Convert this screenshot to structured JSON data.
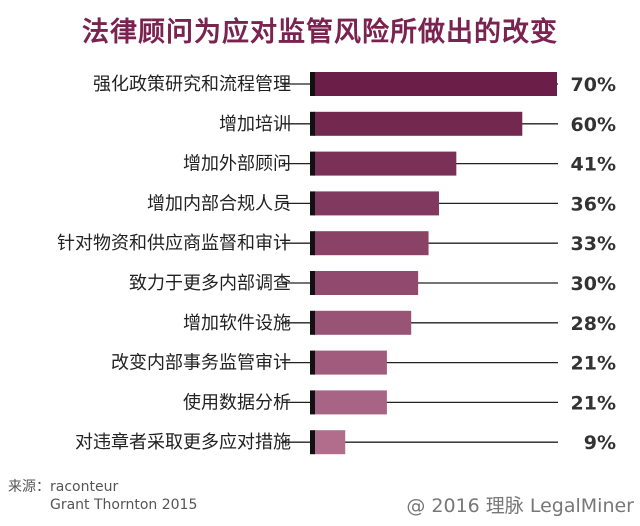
{
  "chart_data": {
    "type": "bar",
    "orientation": "horizontal",
    "title": "法律顾问为应对监管风险所做出的改变",
    "categories": [
      "强化政策研究和流程管理",
      "增加培训",
      "增加外部顾问",
      "增加内部合规人员",
      "针对物资和供应商监督和审计",
      "致力于更多内部调查",
      "增加软件设施",
      "改变内部事务监管审计",
      "使用数据分析",
      "对违章者采取更多应对措施"
    ],
    "values": [
      70,
      60,
      41,
      36,
      33,
      30,
      28,
      21,
      21,
      9
    ],
    "value_labels": [
      "70%",
      "60%",
      "41%",
      "36%",
      "33%",
      "30%",
      "28%",
      "21%",
      "21%",
      "9%"
    ],
    "xlim": [
      0,
      70
    ],
    "grid": false,
    "colors": {
      "dark": "#6b1f48",
      "light": "#b06d8c",
      "title": "#7a2350"
    }
  },
  "source": {
    "line1": "来源：raconteur",
    "line2": "Grant Thornton 2015"
  },
  "watermark": "@ 2016 理脉 LegalMiner"
}
